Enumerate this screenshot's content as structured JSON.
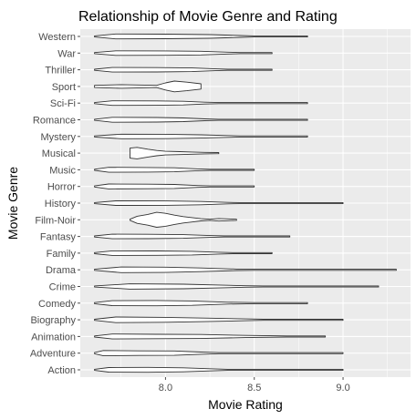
{
  "chart_data": {
    "type": "violin",
    "title": "Relationship of Movie Genre and Rating",
    "xlabel": "Movie Rating",
    "ylabel": "Movie Genre",
    "xlim": [
      7.52,
      9.38
    ],
    "x_ticks": [
      8.0,
      8.5,
      9.0
    ],
    "x_tick_labels": [
      "8.0",
      "8.5",
      "9.0"
    ],
    "grid": true,
    "categories": [
      "Action",
      "Adventure",
      "Animation",
      "Biography",
      "Comedy",
      "Crime",
      "Drama",
      "Family",
      "Fantasy",
      "Film-Noir",
      "History",
      "Horror",
      "Music",
      "Musical",
      "Mystery",
      "Romance",
      "Sci-Fi",
      "Sport",
      "Thriller",
      "War",
      "Western"
    ],
    "series": [
      {
        "category": "Action",
        "min": 7.6,
        "max": 9.0,
        "tail_from": 8.35,
        "shape": [
          [
            7.6,
            0.02
          ],
          [
            7.68,
            0.13
          ],
          [
            7.9,
            0.14
          ],
          [
            8.1,
            0.11
          ],
          [
            8.25,
            0.06
          ],
          [
            8.35,
            0.01
          ],
          [
            9.0,
            0.01
          ]
        ]
      },
      {
        "category": "Adventure",
        "min": 7.6,
        "max": 9.0,
        "tail_from": 8.3,
        "shape": [
          [
            7.6,
            0.02
          ],
          [
            7.65,
            0.15
          ],
          [
            7.85,
            0.13
          ],
          [
            8.05,
            0.12
          ],
          [
            8.2,
            0.06
          ],
          [
            8.3,
            0.01
          ],
          [
            9.0,
            0.01
          ]
        ]
      },
      {
        "category": "Animation",
        "min": 7.6,
        "max": 8.9,
        "tail_from": 8.68,
        "shape": [
          [
            7.6,
            0.02
          ],
          [
            7.7,
            0.14
          ],
          [
            7.95,
            0.12
          ],
          [
            8.2,
            0.11
          ],
          [
            8.45,
            0.06
          ],
          [
            8.68,
            0.01
          ],
          [
            8.9,
            0.005
          ]
        ]
      },
      {
        "category": "Biography",
        "min": 7.6,
        "max": 9.0,
        "tail_from": 8.55,
        "shape": [
          [
            7.6,
            0.02
          ],
          [
            7.72,
            0.16
          ],
          [
            8.0,
            0.14
          ],
          [
            8.25,
            0.09
          ],
          [
            8.45,
            0.05
          ],
          [
            8.55,
            0.01
          ],
          [
            9.0,
            0.005
          ]
        ]
      },
      {
        "category": "Comedy",
        "min": 7.6,
        "max": 8.8,
        "tail_from": 8.5,
        "shape": [
          [
            7.6,
            0.02
          ],
          [
            7.7,
            0.14
          ],
          [
            7.95,
            0.15
          ],
          [
            8.15,
            0.12
          ],
          [
            8.35,
            0.05
          ],
          [
            8.5,
            0.01
          ],
          [
            8.8,
            0.005
          ]
        ]
      },
      {
        "category": "Crime",
        "min": 7.6,
        "max": 9.2,
        "tail_from": 8.55,
        "shape": [
          [
            7.6,
            0.02
          ],
          [
            7.8,
            0.15
          ],
          [
            8.1,
            0.13
          ],
          [
            8.3,
            0.08
          ],
          [
            8.45,
            0.04
          ],
          [
            8.55,
            0.01
          ],
          [
            9.2,
            0.004
          ]
        ]
      },
      {
        "category": "Drama",
        "min": 7.6,
        "max": 9.3,
        "tail_from": 8.5,
        "shape": [
          [
            7.6,
            0.03
          ],
          [
            7.75,
            0.16
          ],
          [
            8.0,
            0.15
          ],
          [
            8.2,
            0.1
          ],
          [
            8.4,
            0.04
          ],
          [
            8.5,
            0.01
          ],
          [
            9.3,
            0.004
          ]
        ]
      },
      {
        "category": "Family",
        "min": 7.6,
        "max": 8.6,
        "tail_from": 8.38,
        "shape": [
          [
            7.6,
            0.02
          ],
          [
            7.7,
            0.13
          ],
          [
            7.95,
            0.12
          ],
          [
            8.15,
            0.1
          ],
          [
            8.3,
            0.05
          ],
          [
            8.38,
            0.01
          ],
          [
            8.6,
            0.005
          ]
        ]
      },
      {
        "category": "Fantasy",
        "min": 7.6,
        "max": 8.7,
        "tail_from": 8.33,
        "shape": [
          [
            7.6,
            0.02
          ],
          [
            7.7,
            0.13
          ],
          [
            7.9,
            0.12
          ],
          [
            8.1,
            0.1
          ],
          [
            8.25,
            0.05
          ],
          [
            8.33,
            0.01
          ],
          [
            8.7,
            0.005
          ]
        ]
      },
      {
        "category": "Film-Noir",
        "min": 7.8,
        "max": 8.4,
        "tail_from": 8.4,
        "shape": [
          [
            7.8,
            0.02
          ],
          [
            7.84,
            0.2
          ],
          [
            7.9,
            0.3
          ],
          [
            7.95,
            0.42
          ],
          [
            8.0,
            0.36
          ],
          [
            8.05,
            0.26
          ],
          [
            8.1,
            0.18
          ],
          [
            8.15,
            0.12
          ],
          [
            8.2,
            0.06
          ],
          [
            8.25,
            0.02
          ],
          [
            8.3,
            0.07
          ],
          [
            8.35,
            0.05
          ],
          [
            8.4,
            0.03
          ]
        ]
      },
      {
        "category": "History",
        "min": 7.6,
        "max": 9.0,
        "tail_from": 8.42,
        "shape": [
          [
            7.6,
            0.02
          ],
          [
            7.72,
            0.13
          ],
          [
            8.0,
            0.12
          ],
          [
            8.2,
            0.09
          ],
          [
            8.35,
            0.04
          ],
          [
            8.42,
            0.01
          ],
          [
            9.0,
            0.004
          ]
        ]
      },
      {
        "category": "Horror",
        "min": 7.6,
        "max": 8.5,
        "tail_from": 8.25,
        "shape": [
          [
            7.6,
            0.02
          ],
          [
            7.68,
            0.14
          ],
          [
            7.9,
            0.13
          ],
          [
            8.05,
            0.11
          ],
          [
            8.18,
            0.05
          ],
          [
            8.25,
            0.01
          ],
          [
            8.5,
            0.005
          ]
        ]
      },
      {
        "category": "Music",
        "min": 7.6,
        "max": 8.5,
        "tail_from": 8.25,
        "shape": [
          [
            7.6,
            0.02
          ],
          [
            7.68,
            0.14
          ],
          [
            7.9,
            0.13
          ],
          [
            8.05,
            0.11
          ],
          [
            8.18,
            0.05
          ],
          [
            8.25,
            0.01
          ],
          [
            8.5,
            0.005
          ]
        ]
      },
      {
        "category": "Musical",
        "min": 7.8,
        "max": 8.3,
        "tail_from": 8.3,
        "shape": [
          [
            7.8,
            0.28
          ],
          [
            7.84,
            0.32
          ],
          [
            7.9,
            0.22
          ],
          [
            7.95,
            0.15
          ],
          [
            8.0,
            0.1
          ],
          [
            8.08,
            0.08
          ],
          [
            8.15,
            0.06
          ],
          [
            8.22,
            0.04
          ],
          [
            8.3,
            0.02
          ]
        ]
      },
      {
        "category": "Mystery",
        "min": 7.6,
        "max": 8.8,
        "tail_from": 8.42,
        "shape": [
          [
            7.6,
            0.02
          ],
          [
            7.75,
            0.13
          ],
          [
            8.0,
            0.12
          ],
          [
            8.2,
            0.09
          ],
          [
            8.35,
            0.05
          ],
          [
            8.42,
            0.01
          ],
          [
            8.8,
            0.005
          ]
        ]
      },
      {
        "category": "Romance",
        "min": 7.6,
        "max": 8.8,
        "tail_from": 8.3,
        "shape": [
          [
            7.6,
            0.02
          ],
          [
            7.7,
            0.14
          ],
          [
            7.95,
            0.13
          ],
          [
            8.1,
            0.1
          ],
          [
            8.22,
            0.05
          ],
          [
            8.3,
            0.01
          ],
          [
            8.8,
            0.005
          ]
        ]
      },
      {
        "category": "Sci-Fi",
        "min": 7.6,
        "max": 8.8,
        "tail_from": 8.3,
        "shape": [
          [
            7.6,
            0.02
          ],
          [
            7.7,
            0.13
          ],
          [
            7.95,
            0.12
          ],
          [
            8.1,
            0.1
          ],
          [
            8.22,
            0.05
          ],
          [
            8.3,
            0.01
          ],
          [
            8.8,
            0.005
          ]
        ]
      },
      {
        "category": "Sport",
        "min": 7.6,
        "max": 8.2,
        "tail_from": 8.2,
        "shape": [
          [
            7.6,
            0.06
          ],
          [
            7.75,
            0.1
          ],
          [
            7.95,
            0.06
          ],
          [
            8.0,
            0.2
          ],
          [
            8.05,
            0.3
          ],
          [
            8.12,
            0.24
          ],
          [
            8.2,
            0.15
          ]
        ]
      },
      {
        "category": "Thriller",
        "min": 7.6,
        "max": 8.6,
        "tail_from": 8.35,
        "shape": [
          [
            7.6,
            0.02
          ],
          [
            7.7,
            0.13
          ],
          [
            7.95,
            0.12
          ],
          [
            8.15,
            0.1
          ],
          [
            8.28,
            0.05
          ],
          [
            8.35,
            0.01
          ],
          [
            8.6,
            0.005
          ]
        ]
      },
      {
        "category": "War",
        "min": 7.6,
        "max": 8.6,
        "tail_from": 8.42,
        "shape": [
          [
            7.6,
            0.02
          ],
          [
            7.72,
            0.13
          ],
          [
            8.0,
            0.12
          ],
          [
            8.2,
            0.1
          ],
          [
            8.35,
            0.05
          ],
          [
            8.42,
            0.01
          ],
          [
            8.6,
            0.005
          ]
        ]
      },
      {
        "category": "Western",
        "min": 7.6,
        "max": 8.8,
        "tail_from": 8.5,
        "shape": [
          [
            7.6,
            0.02
          ],
          [
            7.72,
            0.14
          ],
          [
            8.0,
            0.13
          ],
          [
            8.25,
            0.1
          ],
          [
            8.42,
            0.05
          ],
          [
            8.5,
            0.01
          ],
          [
            8.8,
            0.005
          ]
        ]
      }
    ],
    "colors": {
      "panel": "#ebebeb",
      "grid_major": "#ffffff",
      "violin_fill": "#ffffff",
      "violin_stroke": "#333333",
      "tick": "#4d4d4d"
    }
  }
}
